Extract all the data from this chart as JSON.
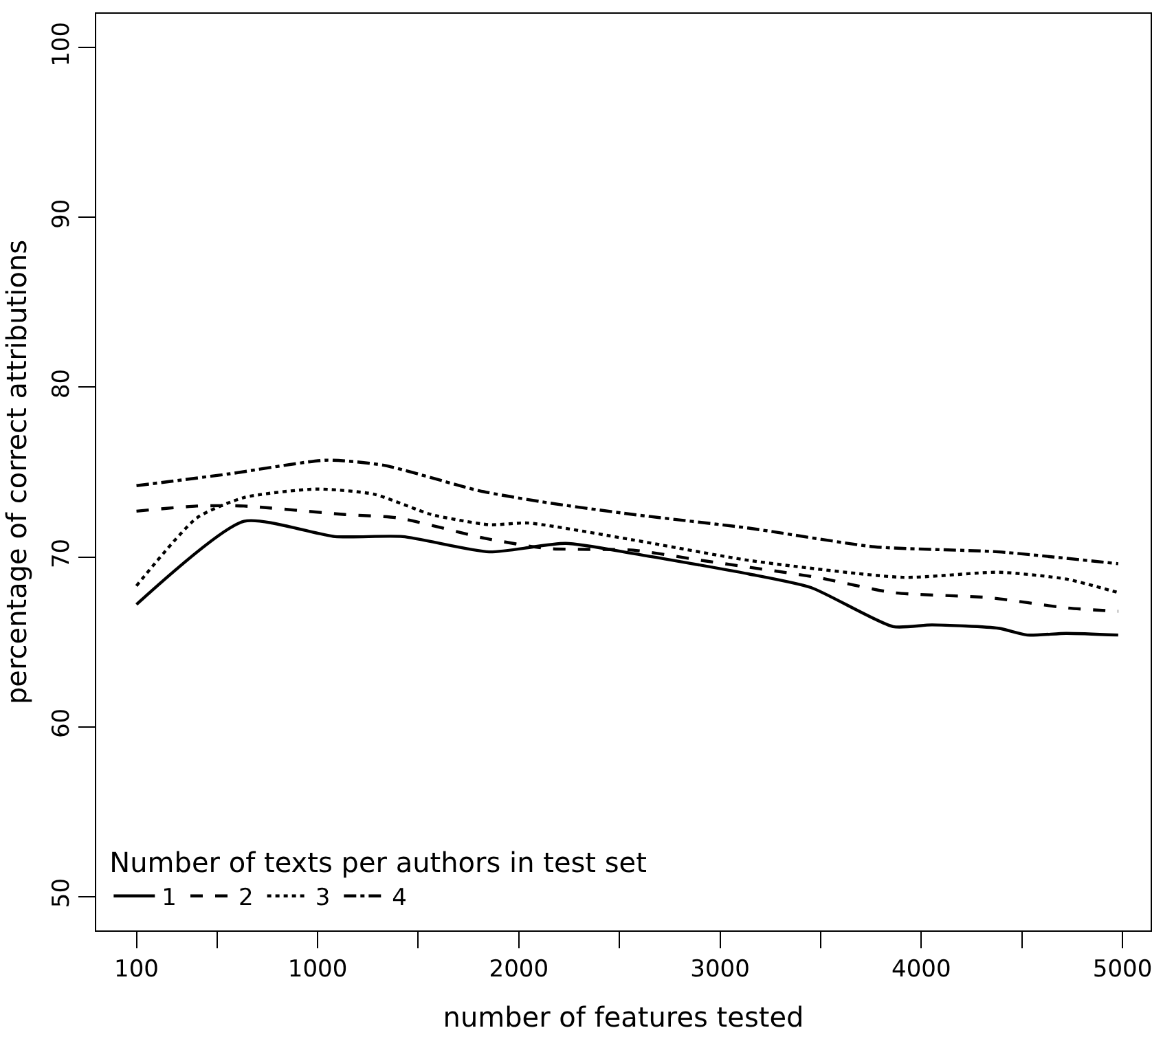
{
  "chart_data": {
    "type": "line",
    "xlabel": "number of features tested",
    "ylabel": "percentage of correct attributions",
    "legend_title": "Number of texts per authors in test set",
    "xlim": [
      -100,
      5140
    ],
    "ylim": [
      48,
      102
    ],
    "xticks": [
      100,
      {
        "value": 500,
        "label": null
      },
      1000,
      {
        "value": 1500,
        "label": null
      },
      2000,
      {
        "value": 2500,
        "label": null
      },
      3000,
      {
        "value": 3500,
        "label": null
      },
      4000,
      {
        "value": 4500,
        "label": null
      },
      5000
    ],
    "yticks": [
      50,
      60,
      70,
      80,
      90,
      100
    ],
    "grid": false,
    "legend": "bottom left",
    "marker": "none",
    "series": [
      {
        "name": "1",
        "color": "#000000",
        "line_style": "solid",
        "x": [
          100,
          634,
          1086,
          1423,
          1853,
          2233,
          2570,
          3143,
          3452,
          3860,
          4054,
          4384,
          4527,
          4720,
          4979
        ],
        "values": [
          67.2,
          72.1,
          71.2,
          71.2,
          70.3,
          70.8,
          70.2,
          69.0,
          68.2,
          65.9,
          66.0,
          65.8,
          65.4,
          65.5,
          65.4
        ]
      },
      {
        "name": "2",
        "color": "#000000",
        "line_style": "dashed",
        "x": [
          100,
          400,
          634,
          1136,
          1401,
          1832,
          2140,
          2570,
          2907,
          3480,
          3860,
          4341,
          4720,
          4979
        ],
        "values": [
          72.7,
          73.0,
          73.0,
          72.5,
          72.3,
          71.1,
          70.5,
          70.4,
          69.8,
          68.8,
          67.9,
          67.6,
          67.0,
          66.8
        ]
      },
      {
        "name": "3",
        "color": "#000000",
        "line_style": "dotted",
        "x": [
          100,
          400,
          634,
          993,
          1280,
          1566,
          1853,
          2047,
          2570,
          3143,
          3910,
          4384,
          4720,
          4979
        ],
        "values": [
          68.3,
          72.3,
          73.5,
          74.0,
          73.7,
          72.5,
          71.9,
          72.0,
          71.0,
          69.8,
          68.8,
          69.1,
          68.7,
          67.9
        ]
      },
      {
        "name": "4",
        "color": "#000000",
        "line_style": "dashdot",
        "x": [
          100,
          563,
          1043,
          1330,
          1803,
          2140,
          2570,
          3143,
          3767,
          4384,
          4979
        ],
        "values": [
          74.2,
          74.9,
          75.7,
          75.4,
          73.9,
          73.2,
          72.5,
          71.7,
          70.6,
          70.3,
          69.6
        ]
      }
    ]
  }
}
